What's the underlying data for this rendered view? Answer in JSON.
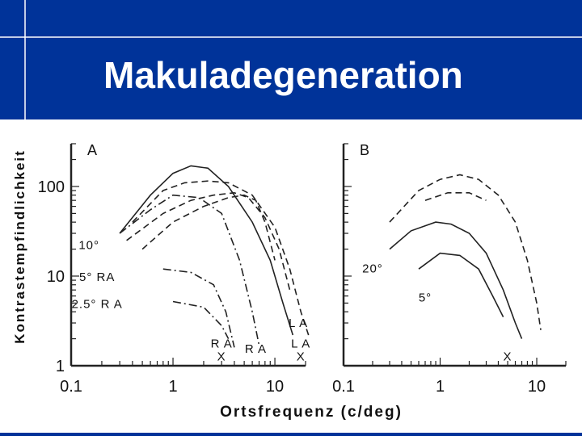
{
  "slide": {
    "title": "Makuladegeneration",
    "header_color": "#003399",
    "line_color": "#ffffff"
  },
  "chart_data": [
    {
      "panel": "A",
      "type": "line",
      "x_scale": "log",
      "y_scale": "log",
      "xlim": [
        0.1,
        20
      ],
      "ylim": [
        1,
        300
      ],
      "xticks": [
        "0.1",
        "1",
        "10"
      ],
      "yticks": [
        "1",
        "10",
        "100"
      ],
      "ylabel": "Kontrastempfindlichkeit",
      "xlabel": "Ortsfrequenz  (c/deg)",
      "annotations": [
        {
          "text": "10°",
          "x": 0.15,
          "y": 20
        },
        {
          "text": "5° RA",
          "x": 0.18,
          "y": 8.8
        },
        {
          "text": "2.5° R A",
          "x": 0.18,
          "y": 4.4
        },
        {
          "text": "L A",
          "x": 17,
          "y": 2.7
        },
        {
          "text": "R A",
          "x": 3.0,
          "y": 1.6
        },
        {
          "text": "X",
          "x": 3.0,
          "y": 1.15
        },
        {
          "text": "R A",
          "x": 6.5,
          "y": 1.4
        },
        {
          "text": "L A",
          "x": 18,
          "y": 1.6
        },
        {
          "text": "X",
          "x": 18,
          "y": 1.15
        }
      ],
      "series": [
        {
          "style": "solid",
          "points": [
            [
              0.3,
              30
            ],
            [
              0.6,
              80
            ],
            [
              1.0,
              140
            ],
            [
              1.5,
              170
            ],
            [
              2.2,
              160
            ],
            [
              3.5,
              100
            ],
            [
              6,
              40
            ],
            [
              9,
              15
            ],
            [
              12,
              5
            ],
            [
              15,
              2.2
            ]
          ]
        },
        {
          "style": "dashed",
          "points": [
            [
              0.4,
              40
            ],
            [
              0.8,
              90
            ],
            [
              1.3,
              110
            ],
            [
              2.2,
              115
            ],
            [
              3.5,
              110
            ],
            [
              6,
              80
            ],
            [
              10,
              35
            ],
            [
              14,
              12
            ],
            [
              18,
              4
            ],
            [
              22,
              2
            ]
          ]
        },
        {
          "style": "dashed",
          "points": [
            [
              0.35,
              25
            ],
            [
              0.8,
              50
            ],
            [
              1.5,
              70
            ],
            [
              2.5,
              80
            ],
            [
              4,
              85
            ],
            [
              5.5,
              75
            ],
            [
              8,
              45
            ],
            [
              11,
              20
            ],
            [
              14,
              7
            ]
          ]
        },
        {
          "style": "dashed",
          "points": [
            [
              0.5,
              20
            ],
            [
              1.0,
              40
            ],
            [
              2,
              60
            ],
            [
              3.5,
              75
            ],
            [
              5,
              80
            ],
            [
              6.5,
              70
            ],
            [
              8,
              40
            ],
            [
              10,
              15
            ]
          ]
        },
        {
          "style": "dashdot",
          "points": [
            [
              0.3,
              30
            ],
            [
              0.6,
              55
            ],
            [
              1.0,
              80
            ],
            [
              1.8,
              75
            ],
            [
              3,
              50
            ],
            [
              4.5,
              15
            ],
            [
              6,
              4
            ],
            [
              7,
              1.7
            ]
          ]
        },
        {
          "style": "dashdot",
          "points": [
            [
              0.8,
              12
            ],
            [
              1.5,
              11
            ],
            [
              2.5,
              8
            ],
            [
              3.3,
              4
            ],
            [
              4,
              1.6
            ]
          ]
        },
        {
          "style": "dashdot",
          "points": [
            [
              1.0,
              5.2
            ],
            [
              2,
              4.5
            ],
            [
              3,
              2.8
            ],
            [
              3.5,
              2.0
            ]
          ]
        }
      ]
    },
    {
      "panel": "B",
      "type": "line",
      "x_scale": "log",
      "y_scale": "log",
      "xlim": [
        0.1,
        20
      ],
      "ylim": [
        1,
        300
      ],
      "xticks": [
        "0.1",
        "1",
        "10"
      ],
      "yticks": [],
      "xlabel": "",
      "annotations": [
        {
          "text": "20°",
          "x": 0.2,
          "y": 11
        },
        {
          "text": "5°",
          "x": 0.7,
          "y": 5.2
        },
        {
          "text": "X",
          "x": 5,
          "y": 1.15
        }
      ],
      "series": [
        {
          "style": "dashed",
          "points": [
            [
              0.3,
              40
            ],
            [
              0.6,
              90
            ],
            [
              1.0,
              120
            ],
            [
              1.6,
              135
            ],
            [
              2.5,
              120
            ],
            [
              4,
              80
            ],
            [
              6,
              40
            ],
            [
              8,
              15
            ],
            [
              10,
              5
            ],
            [
              11,
              2.5
            ]
          ]
        },
        {
          "style": "dashed",
          "points": [
            [
              0.7,
              70
            ],
            [
              1.2,
              85
            ],
            [
              2,
              85
            ],
            [
              3,
              70
            ]
          ]
        },
        {
          "style": "solid",
          "points": [
            [
              0.3,
              20
            ],
            [
              0.5,
              32
            ],
            [
              0.9,
              40
            ],
            [
              1.3,
              38
            ],
            [
              2,
              30
            ],
            [
              3,
              18
            ],
            [
              4.5,
              7
            ],
            [
              6,
              3
            ],
            [
              7,
              2
            ]
          ]
        },
        {
          "style": "solid",
          "points": [
            [
              0.6,
              12
            ],
            [
              1.0,
              18
            ],
            [
              1.6,
              17
            ],
            [
              2.5,
              12
            ],
            [
              3.5,
              6
            ],
            [
              4.5,
              3.5
            ]
          ]
        }
      ]
    }
  ]
}
